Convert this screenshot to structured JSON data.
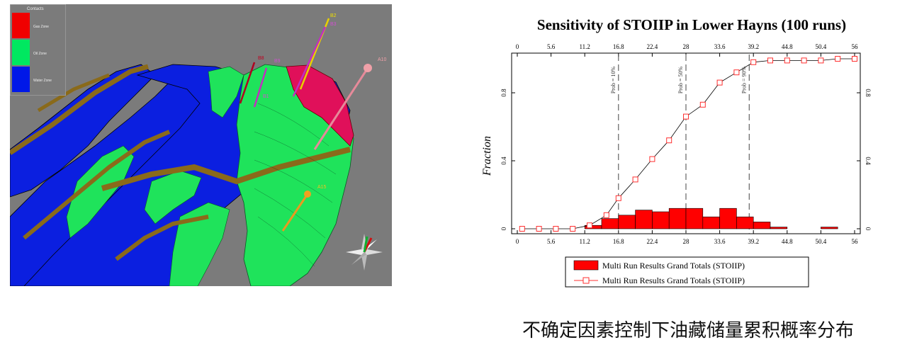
{
  "scene": {
    "legend": {
      "title": "Contacts",
      "items": [
        {
          "label": "Gas Zone",
          "color": "#f00000"
        },
        {
          "label": "Oil Zone",
          "color": "#00e860"
        },
        {
          "label": "Water Zone",
          "color": "#0018e8"
        }
      ]
    },
    "wells": [
      "B2",
      "B3",
      "B8",
      "B9",
      "A10",
      "A15",
      "B1"
    ],
    "colors": {
      "background": "#7b7b7b",
      "water": "#0b1fe0",
      "oil": "#1fe35b",
      "gas": "#e0105a",
      "fault": "#8a6a1a"
    }
  },
  "chart_data": {
    "type": "bar+line",
    "title": "Sensitivity of STOIIP in Lower Hayns (100 runs)",
    "xlabel": "",
    "ylabel": "Fraction",
    "xlim": [
      0,
      56
    ],
    "ylim": [
      0,
      1
    ],
    "xticks": [
      "0",
      "5.6",
      "11.2",
      "16.8",
      "22.4",
      "28",
      "33.6",
      "39.2",
      "44.8",
      "50.4",
      "56"
    ],
    "yticks": [
      "0",
      "0.4",
      "0.8"
    ],
    "bar_width": 2.8,
    "bars": {
      "name": "Multi Run Results Grand Totals (STOIIP)",
      "color": "#ff0000",
      "x": [
        11.2,
        14.0,
        16.8,
        19.6,
        22.4,
        25.2,
        28.0,
        30.8,
        33.6,
        36.4,
        39.2,
        42.0,
        44.8,
        47.6,
        50.4,
        53.2
      ],
      "values": [
        0.02,
        0.06,
        0.08,
        0.11,
        0.1,
        0.12,
        0.12,
        0.07,
        0.12,
        0.07,
        0.04,
        0.01,
        0.0,
        0.0,
        0.01,
        0.0
      ]
    },
    "line": {
      "name": "Multi Run Results Grand Totals (STOIIP)",
      "color": "#ff3030",
      "x": [
        0.8,
        3.6,
        6.4,
        9.2,
        12.0,
        14.8,
        16.8,
        19.6,
        22.4,
        25.2,
        28.0,
        30.8,
        33.6,
        36.4,
        39.2,
        42.0,
        44.8,
        47.6,
        50.4,
        53.2,
        56.0
      ],
      "values": [
        0.0,
        0.0,
        0.0,
        0.0,
        0.02,
        0.08,
        0.18,
        0.29,
        0.41,
        0.52,
        0.66,
        0.73,
        0.86,
        0.92,
        0.98,
        0.99,
        0.99,
        0.99,
        0.99,
        1.0,
        1.0
      ]
    },
    "markers": [
      {
        "x": 16.8,
        "label": "Prob = 10%"
      },
      {
        "x": 28.0,
        "label": "Prob = 50%"
      },
      {
        "x": 38.5,
        "label": "Prob = 90%"
      }
    ]
  },
  "caption": "不确定因素控制下油藏储量累积概率分布"
}
